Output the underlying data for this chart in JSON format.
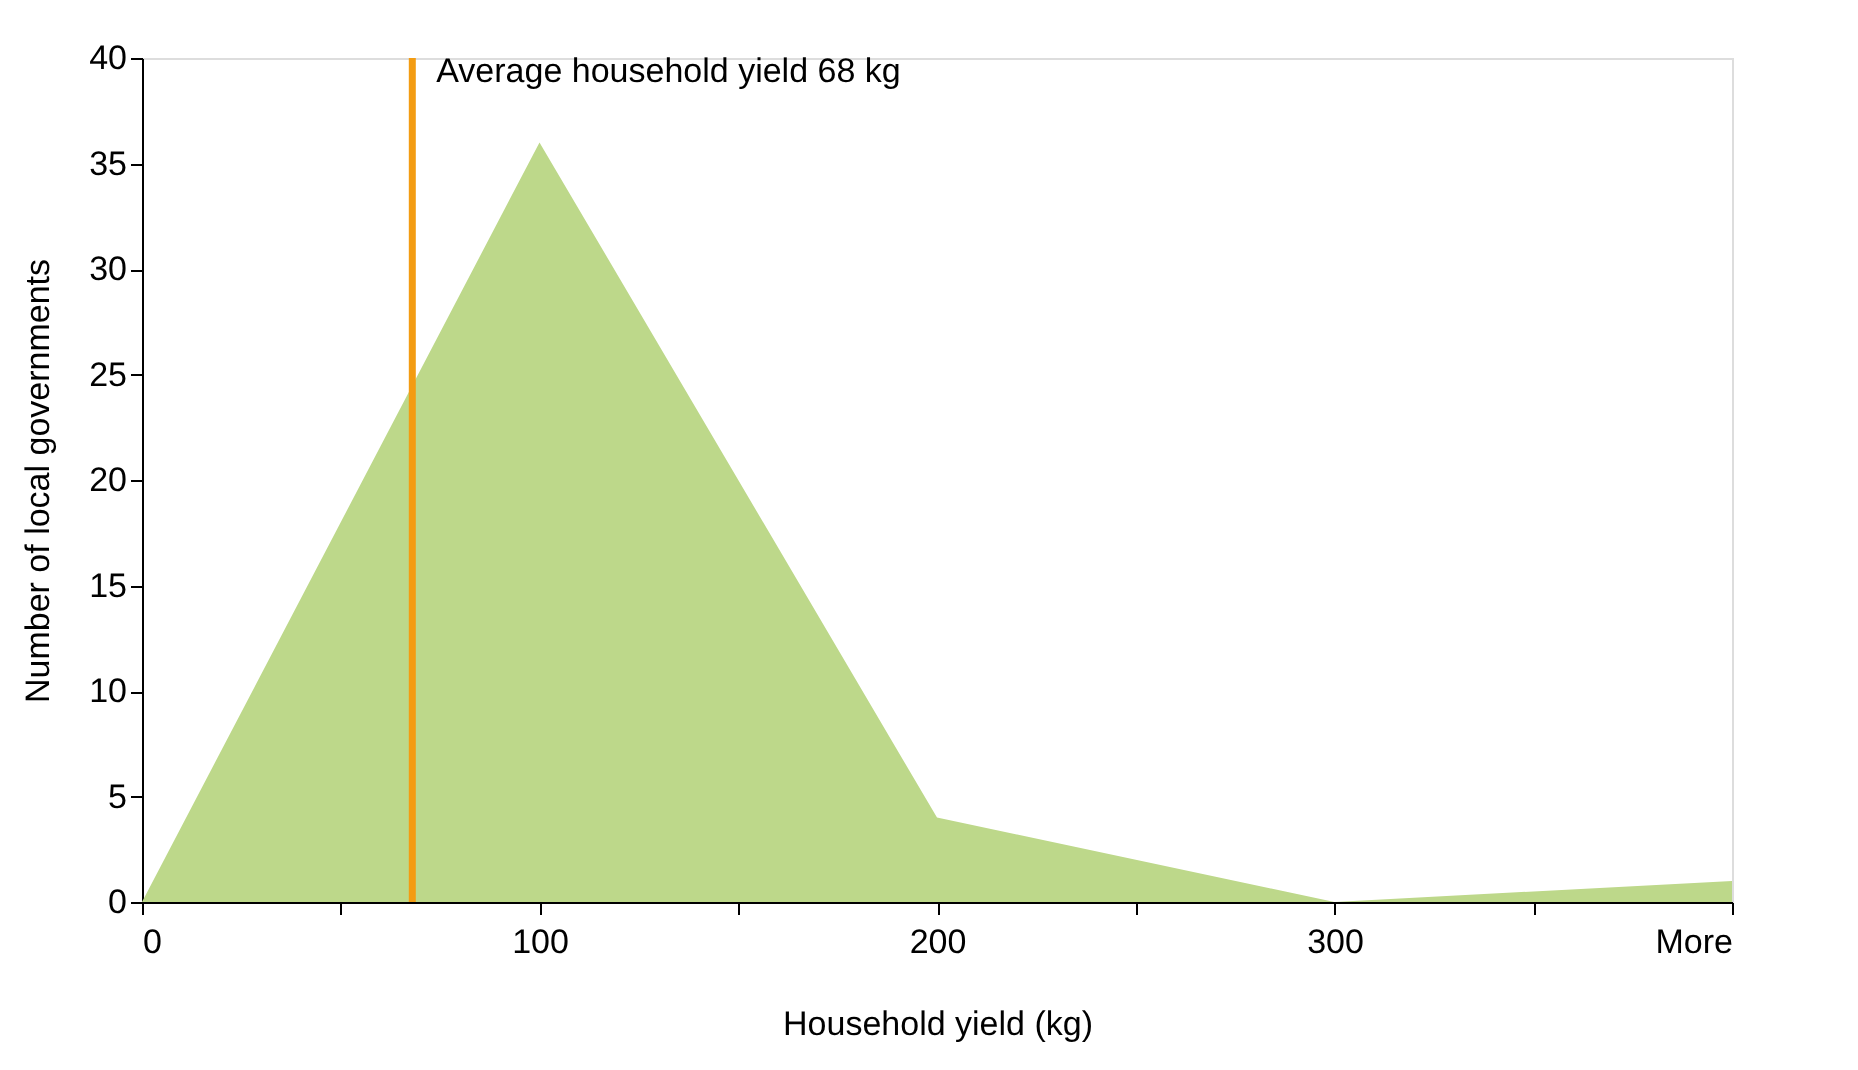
{
  "chart_data": {
    "type": "area",
    "xlabel": "Household yield (kg)",
    "ylabel": "Number of local governments",
    "x": [
      0,
      100,
      200,
      300,
      400
    ],
    "series": [
      {
        "color": "#bdd88a",
        "values": [
          0,
          36,
          4,
          0,
          1
        ]
      }
    ],
    "xlim": [
      0,
      400
    ],
    "xticks": [
      0,
      {
        "value": 50,
        "label": null
      },
      100,
      {
        "value": 150,
        "label": null
      },
      200,
      {
        "value": 250,
        "label": null
      },
      300,
      {
        "value": 350,
        "label": null
      },
      {
        "value": 400,
        "label": "More"
      }
    ],
    "ylim": [
      0,
      40
    ],
    "yticks": [
      0,
      5,
      10,
      15,
      20,
      25,
      30,
      35,
      40
    ],
    "ref_lines": [
      {
        "axis": "x",
        "value": 68,
        "label": "Average household yield 68 kg",
        "color": "#f39c12"
      }
    ],
    "grid": false
  }
}
